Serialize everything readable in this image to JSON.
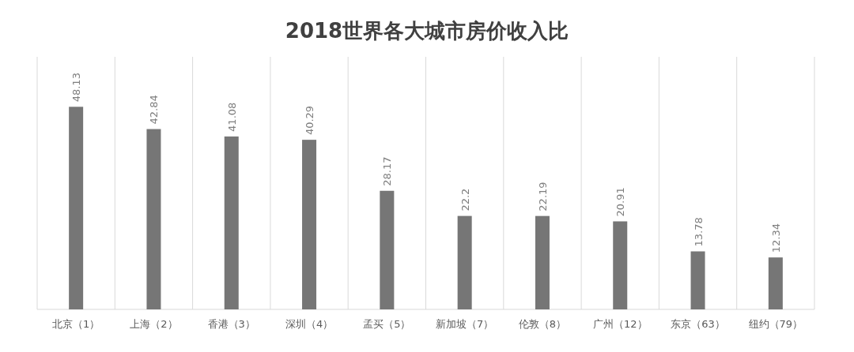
{
  "chart_data": {
    "type": "bar",
    "title": "2018世界各大城市房价收入比",
    "categories": [
      "北京（1）",
      "上海（2）",
      "香港（3）",
      "深圳（4）",
      "孟买（5）",
      "新加坡（7）",
      "伦敦（8）",
      "广州（12）",
      "东京（63）",
      "纽约（79）"
    ],
    "values": [
      48.13,
      42.84,
      41.08,
      40.29,
      28.17,
      22.2,
      22.19,
      20.91,
      13.78,
      12.34
    ],
    "value_labels": [
      "48.13",
      "42.84",
      "41.08",
      "40.29",
      "28.17",
      "22.2",
      "22.19",
      "20.91",
      "13.78",
      "12.34"
    ],
    "color": "#767676",
    "ylim": [
      0,
      60
    ],
    "grid": "x",
    "tick_labels": "x"
  }
}
